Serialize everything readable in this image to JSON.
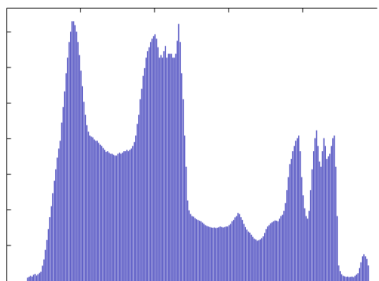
{
  "chart_data": {
    "type": "bar",
    "title": "",
    "xlabel": "",
    "ylabel": "",
    "grid": false,
    "legend": "none",
    "bar_color": "#1f1fb0",
    "xlim": [
      0,
      256
    ],
    "ylim": [
      0,
      1
    ],
    "x_ticks": [
      0,
      51.2,
      102.4,
      153.6,
      204.8,
      256
    ],
    "y_ticks": [
      0,
      0.137,
      0.274,
      0.411,
      0.548,
      0.685,
      0.822,
      0.959
    ],
    "series": [
      {
        "values": [
          0.013,
          0.016,
          0.02,
          0.017,
          0.024,
          0.027,
          0.021,
          0.026,
          0.031,
          0.036,
          0.059,
          0.083,
          0.12,
          0.158,
          0.2,
          0.246,
          0.288,
          0.338,
          0.386,
          0.43,
          0.475,
          0.51,
          0.54,
          0.61,
          0.67,
          0.73,
          0.8,
          0.86,
          0.92,
          0.96,
          1.0,
          1.0,
          0.985,
          0.96,
          0.92,
          0.87,
          0.81,
          0.75,
          0.69,
          0.64,
          0.6,
          0.575,
          0.56,
          0.556,
          0.553,
          0.545,
          0.54,
          0.54,
          0.532,
          0.525,
          0.52,
          0.512,
          0.505,
          0.497,
          0.5,
          0.494,
          0.49,
          0.49,
          0.486,
          0.483,
          0.483,
          0.49,
          0.494,
          0.49,
          0.494,
          0.5,
          0.5,
          0.505,
          0.5,
          0.505,
          0.51,
          0.52,
          0.535,
          0.56,
          0.605,
          0.64,
          0.7,
          0.74,
          0.79,
          0.82,
          0.86,
          0.885,
          0.9,
          0.92,
          0.933,
          0.943,
          0.95,
          0.933,
          0.9,
          0.86,
          0.87,
          0.86,
          0.885,
          0.905,
          0.86,
          0.875,
          0.875,
          0.875,
          0.86,
          0.86,
          0.875,
          0.925,
          0.99,
          0.92,
          0.8,
          0.7,
          0.56,
          0.44,
          0.31,
          0.272,
          0.258,
          0.25,
          0.248,
          0.242,
          0.238,
          0.235,
          0.232,
          0.23,
          0.225,
          0.22,
          0.215,
          0.212,
          0.21,
          0.208,
          0.206,
          0.205,
          0.206,
          0.204,
          0.205,
          0.207,
          0.21,
          0.208,
          0.206,
          0.208,
          0.21,
          0.21,
          0.215,
          0.22,
          0.23,
          0.235,
          0.245,
          0.25,
          0.262,
          0.258,
          0.246,
          0.235,
          0.22,
          0.208,
          0.198,
          0.19,
          0.186,
          0.178,
          0.17,
          0.163,
          0.16,
          0.155,
          0.157,
          0.16,
          0.165,
          0.172,
          0.185,
          0.2,
          0.21,
          0.215,
          0.222,
          0.226,
          0.23,
          0.233,
          0.232,
          0.23,
          0.24,
          0.25,
          0.255,
          0.27,
          0.3,
          0.35,
          0.4,
          0.45,
          0.47,
          0.5,
          0.52,
          0.54,
          0.55,
          0.56,
          0.5,
          0.4,
          0.33,
          0.28,
          0.25,
          0.24,
          0.27,
          0.35,
          0.43,
          0.5,
          0.55,
          0.58,
          0.52,
          0.46,
          0.44,
          0.5,
          0.55,
          0.52,
          0.47,
          0.48,
          0.49,
          0.52,
          0.55,
          0.56,
          0.44,
          0.25,
          0.06,
          0.038,
          0.026,
          0.02,
          0.018,
          0.016,
          0.017,
          0.015,
          0.016,
          0.017,
          0.015,
          0.02,
          0.025,
          0.03,
          0.05,
          0.072,
          0.095,
          0.103,
          0.095,
          0.085,
          0.06
        ]
      }
    ]
  }
}
